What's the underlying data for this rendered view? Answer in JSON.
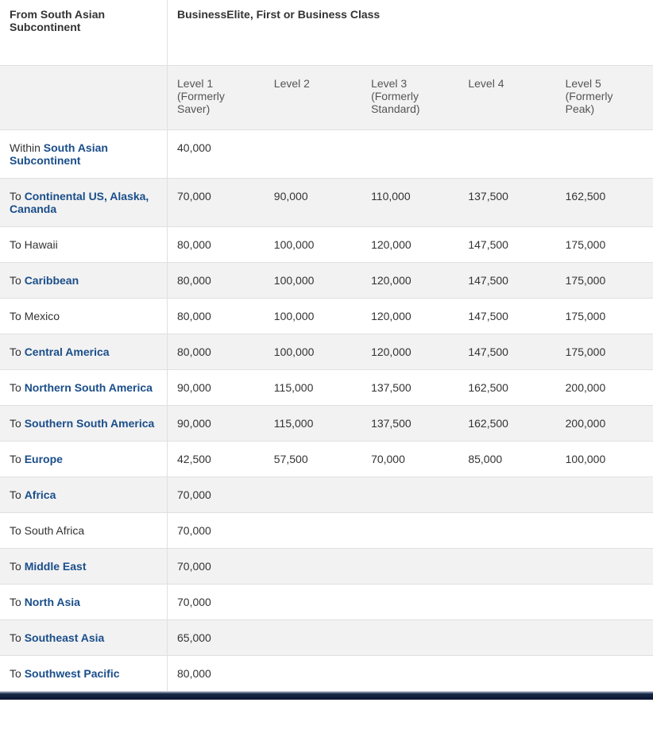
{
  "header": {
    "origin_label": "From South Asian Subcontinent",
    "class_label": "BusinessElite, First or Business Class"
  },
  "levels": [
    {
      "title": "Level 1",
      "sub": "(Formerly Saver)"
    },
    {
      "title": "Level 2",
      "sub": ""
    },
    {
      "title": "Level 3",
      "sub": "(Formerly Standard)"
    },
    {
      "title": "Level 4",
      "sub": ""
    },
    {
      "title": "Level 5",
      "sub": "(Formerly Peak)"
    }
  ],
  "rows": [
    {
      "prefix": "Within ",
      "link": "South Asian Subcontinent",
      "values": [
        "40,000",
        "",
        "",
        "",
        ""
      ]
    },
    {
      "prefix": "To ",
      "link": "Continental US, Alaska, Cananda",
      "values": [
        "70,000",
        "90,000",
        "110,000",
        "137,500",
        "162,500"
      ]
    },
    {
      "prefix": "To Hawaii",
      "link": "",
      "values": [
        "80,000",
        "100,000",
        "120,000",
        "147,500",
        "175,000"
      ]
    },
    {
      "prefix": "To ",
      "link": "Caribbean",
      "values": [
        "80,000",
        "100,000",
        "120,000",
        "147,500",
        "175,000"
      ]
    },
    {
      "prefix": "To Mexico",
      "link": "",
      "values": [
        "80,000",
        "100,000",
        "120,000",
        "147,500",
        "175,000"
      ]
    },
    {
      "prefix": "To ",
      "link": "Central America",
      "values": [
        "80,000",
        "100,000",
        "120,000",
        "147,500",
        "175,000"
      ]
    },
    {
      "prefix": "To ",
      "link": "Northern South America",
      "values": [
        "90,000",
        "115,000",
        "137,500",
        "162,500",
        "200,000"
      ]
    },
    {
      "prefix": "To ",
      "link": "Southern South America",
      "values": [
        "90,000",
        "115,000",
        "137,500",
        "162,500",
        "200,000"
      ]
    },
    {
      "prefix": "To ",
      "link": "Europe",
      "values": [
        "42,500",
        "57,500",
        "70,000",
        "85,000",
        "100,000"
      ]
    },
    {
      "prefix": "To ",
      "link": "Africa",
      "values": [
        "70,000",
        "",
        "",
        "",
        ""
      ]
    },
    {
      "prefix": "To South Africa",
      "link": "",
      "values": [
        "70,000",
        "",
        "",
        "",
        ""
      ]
    },
    {
      "prefix": "To ",
      "link": "Middle East",
      "values": [
        "70,000",
        "",
        "",
        "",
        ""
      ]
    },
    {
      "prefix": "To ",
      "link": "North Asia",
      "values": [
        "70,000",
        "",
        "",
        "",
        ""
      ]
    },
    {
      "prefix": "To ",
      "link": "Southeast Asia",
      "values": [
        "65,000",
        "",
        "",
        "",
        ""
      ]
    },
    {
      "prefix": "To ",
      "link": "Southwest Pacific",
      "values": [
        "80,000",
        "",
        "",
        "",
        ""
      ]
    }
  ],
  "colors": {
    "link": "#1a4e8a",
    "text": "#333333",
    "alt_row_bg": "#f2f2f2",
    "border": "#e0e0e0"
  }
}
